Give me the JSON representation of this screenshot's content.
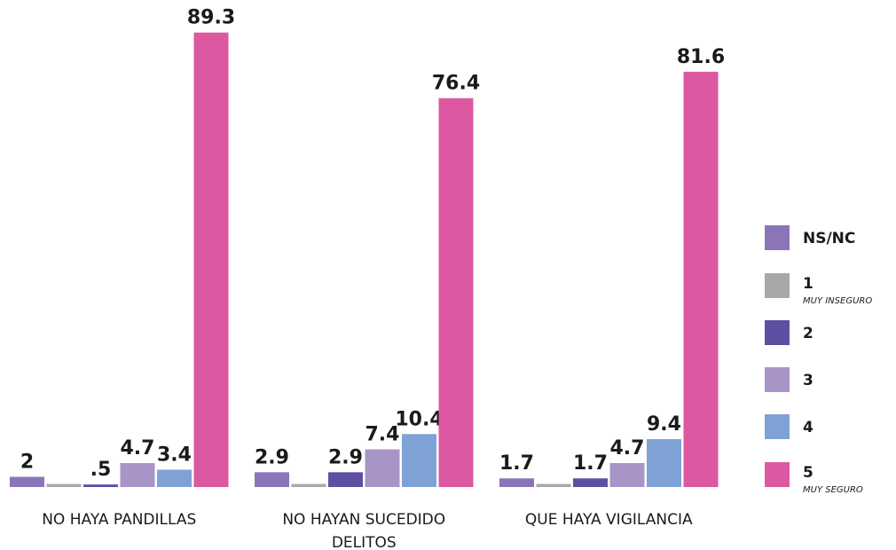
{
  "chart_data": {
    "type": "bar",
    "categories": [
      "NO HAYA PANDILLAS",
      "NO HAYAN SUCEDIDO DELITOS",
      "QUE HAYA VIGILANCIA"
    ],
    "ylim": [
      0,
      95
    ],
    "series": [
      {
        "name": "NS/NC",
        "color": "#8b75b8",
        "values": [
          2,
          2.9,
          1.7
        ],
        "value_labels": [
          "2",
          "2.9",
          "1.7"
        ]
      },
      {
        "name": "1",
        "subtitle": "MUY INSEGURO",
        "color": "#a8a8a8",
        "values": [
          0.6,
          0.6,
          0.6
        ]
      },
      {
        "name": "2",
        "color": "#5e4fa2",
        "values": [
          0.5,
          2.9,
          1.7
        ],
        "value_labels": [
          ".5",
          "2.9",
          "1.7"
        ]
      },
      {
        "name": "3",
        "color": "#a994c8",
        "values": [
          4.7,
          7.4,
          4.7
        ],
        "value_labels": [
          "4.7",
          "7.4",
          "4.7"
        ]
      },
      {
        "name": "4",
        "color": "#7fa2d6",
        "values": [
          3.4,
          10.4,
          9.4
        ],
        "value_labels": [
          "3.4",
          "10.4",
          "9.4"
        ]
      },
      {
        "name": "5",
        "subtitle": "MUY SEGURO",
        "color": "#dc58a0",
        "values": [
          89.3,
          76.4,
          81.6
        ],
        "value_labels": [
          "89.3",
          "76.4",
          "81.6"
        ]
      }
    ]
  }
}
